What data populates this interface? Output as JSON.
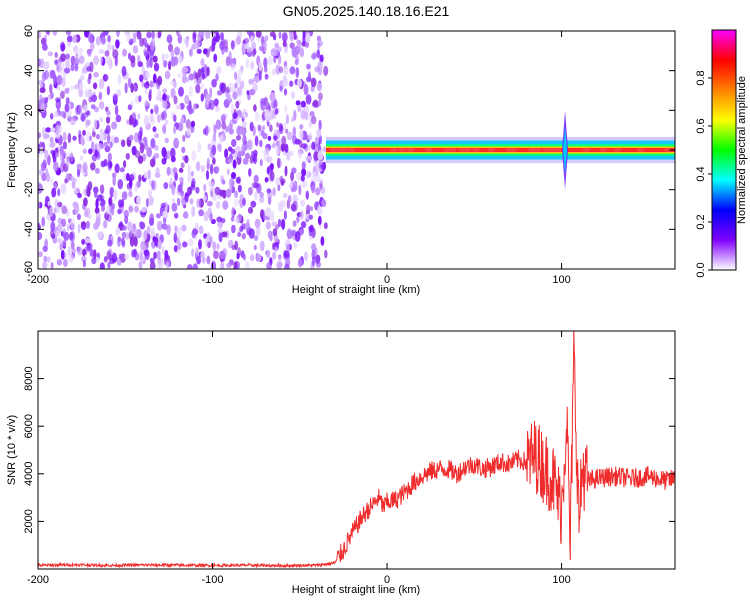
{
  "title": "GN05.2025.140.18.16.E21",
  "chart_data": [
    {
      "type": "heatmap",
      "name": "spectrogram",
      "xlabel": "Height of straight line (km)",
      "ylabel": "Frequency (Hz)",
      "xlim": [
        -200,
        165
      ],
      "ylim": [
        -60,
        60
      ],
      "xticks": [
        -200,
        -100,
        0,
        100
      ],
      "yticks": [
        -60,
        -40,
        -20,
        0,
        20,
        40,
        60
      ],
      "grid": false,
      "noise_region_x": [
        -200,
        -35
      ],
      "signal_band": {
        "x_start": -35,
        "x_end": 165,
        "center_hz": 0,
        "half_width_hz": 3
      },
      "spike_x": 102,
      "colorbar": {
        "label": "Normalized spectral amplitude",
        "range": [
          0.0,
          1.0
        ],
        "ticks": [
          0.0,
          0.2,
          0.4,
          0.6,
          0.8
        ],
        "tick_labels": [
          "0.0",
          "0.2",
          "0.4",
          "0.6",
          "0.8"
        ],
        "colormap": [
          "#ffffff",
          "#8000ff",
          "#0000ff",
          "#00ffff",
          "#00ff00",
          "#ffff00",
          "#ff8000",
          "#ff0000",
          "#ff00ff"
        ]
      }
    },
    {
      "type": "line",
      "name": "snr",
      "xlabel": "Height of straight line (km)",
      "ylabel": "SNR (10 * v/v)",
      "xlim": [
        -200,
        165
      ],
      "ylim": [
        0,
        10000
      ],
      "xticks": [
        -200,
        -100,
        0,
        100
      ],
      "yticks": [
        2000,
        4000,
        6000,
        8000
      ],
      "grid": false,
      "color": "#ef2b2b",
      "x": [
        -200,
        -180,
        -160,
        -140,
        -120,
        -100,
        -80,
        -60,
        -40,
        -30,
        -25,
        -20,
        -15,
        -12,
        -8,
        -5,
        -2,
        0,
        5,
        10,
        15,
        20,
        25,
        30,
        35,
        40,
        45,
        50,
        55,
        60,
        65,
        70,
        75,
        80,
        85,
        90,
        95,
        100,
        103,
        105,
        107,
        110,
        112,
        115,
        120,
        130,
        140,
        150,
        160,
        165
      ],
      "y": [
        150,
        180,
        150,
        170,
        160,
        150,
        160,
        140,
        160,
        250,
        800,
        1500,
        2100,
        2400,
        2700,
        3000,
        2600,
        2800,
        2900,
        3200,
        3600,
        3900,
        4100,
        4200,
        4200,
        4000,
        4300,
        4400,
        4200,
        4300,
        4500,
        4400,
        4600,
        4500,
        4800,
        4300,
        3800,
        2500,
        6500,
        800,
        9000,
        2000,
        4200,
        3700,
        3800,
        3900,
        3800,
        3900,
        3700,
        3800
      ]
    }
  ]
}
